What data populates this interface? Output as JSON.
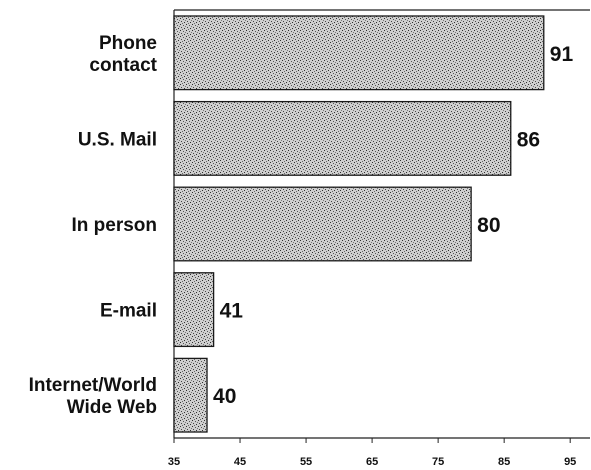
{
  "chart_data": {
    "type": "bar",
    "orientation": "horizontal",
    "categories": [
      [
        "Phone",
        "contact"
      ],
      [
        "U.S. Mail"
      ],
      [
        "In person"
      ],
      [
        "E-mail"
      ],
      [
        "Internet/World",
        "Wide Web"
      ]
    ],
    "values": [
      91,
      86,
      80,
      41,
      40
    ],
    "value_labels": [
      "91",
      "86",
      "80",
      "41",
      "40"
    ],
    "xlim": [
      35,
      98
    ],
    "xticks": [
      35,
      45,
      55,
      65,
      75,
      85,
      95
    ],
    "xtick_labels": [
      "35",
      "45",
      "55",
      "65",
      "75",
      "85",
      "95"
    ],
    "title": "",
    "xlabel": "",
    "ylabel": "",
    "grid": false,
    "bar_style": "stippled gray",
    "bar_color": "#c8c8c8",
    "stipple_color": "#3a3a3a"
  }
}
